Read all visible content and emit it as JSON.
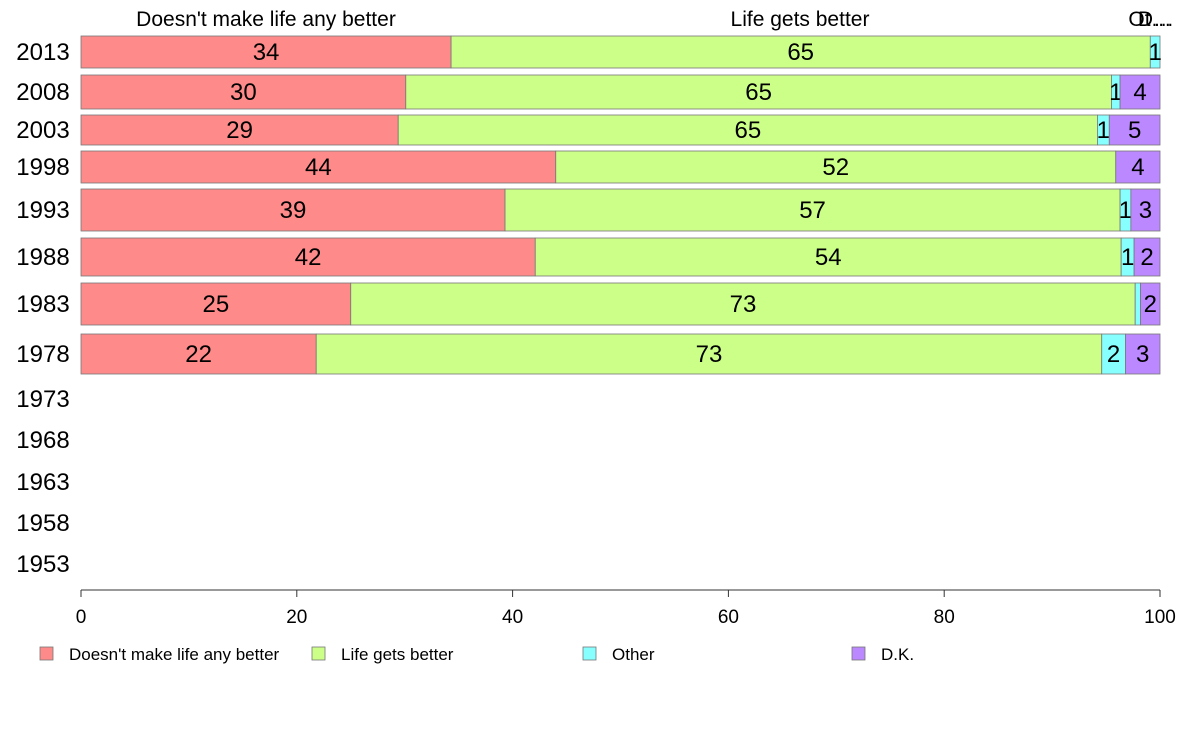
{
  "chart_data": {
    "type": "bar",
    "orientation": "horizontal",
    "stacked": true,
    "title": "",
    "xlabel": "",
    "ylabel": "",
    "xlim": [
      0,
      100
    ],
    "x_ticks": [
      0,
      20,
      40,
      60,
      80,
      100
    ],
    "grid": false,
    "legend_position": "bottom",
    "categories": [
      "2013",
      "2008",
      "2003",
      "1998",
      "1993",
      "1988",
      "1983",
      "1978",
      "1973",
      "1968",
      "1963",
      "1958",
      "1953"
    ],
    "column_headers": [
      "Doesn't make life any better",
      "Life gets better",
      "Ot…",
      "D…"
    ],
    "series": [
      {
        "name": "Doesn't make life any better",
        "color": "#ff8a8a",
        "values": [
          34.3,
          30.1,
          29.4,
          44.0,
          39.3,
          42.1,
          25.0,
          21.8,
          null,
          null,
          null,
          null,
          null
        ],
        "labels": [
          "34",
          "30",
          "29",
          "44",
          "39",
          "42",
          "25",
          "22",
          "",
          "",
          "",
          "",
          ""
        ]
      },
      {
        "name": "Life gets better",
        "color": "#ccff88",
        "values": [
          64.8,
          65.4,
          64.8,
          51.9,
          57.0,
          54.3,
          72.7,
          72.8,
          null,
          null,
          null,
          null,
          null
        ],
        "labels": [
          "65",
          "65",
          "65",
          "52",
          "57",
          "54",
          "73",
          "73",
          "",
          "",
          "",
          "",
          ""
        ]
      },
      {
        "name": "Other",
        "color": "#88ffff",
        "values": [
          0.9,
          0.8,
          1.1,
          0.0,
          1.0,
          1.2,
          0.5,
          2.2,
          null,
          null,
          null,
          null,
          null
        ],
        "labels": [
          "1",
          "1",
          "1",
          "",
          "1",
          "1",
          "",
          "2",
          "",
          "",
          "",
          "",
          ""
        ]
      },
      {
        "name": "D.K.",
        "color": "#bb88ff",
        "values": [
          0.0,
          3.7,
          4.7,
          4.1,
          2.7,
          2.4,
          1.8,
          3.2,
          null,
          null,
          null,
          null,
          null
        ],
        "labels": [
          "",
          "4",
          "5",
          "4",
          "3",
          "2",
          "2",
          "3",
          "",
          "",
          "",
          "",
          ""
        ]
      }
    ]
  }
}
